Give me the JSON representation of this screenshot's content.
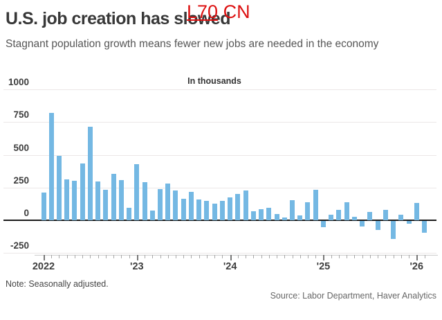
{
  "overlay": {
    "underlined_part": "L70",
    "rest_part": " CN",
    "color": "#dd1111"
  },
  "header": {
    "title": "U.S. job creation has slowed",
    "subtitle": "Stagnant population growth means fewer new jobs are needed in the economy"
  },
  "footer": {
    "note": "Note: Seasonally adjusted.",
    "source": "Source: Labor Department, Haver Analytics"
  },
  "chart_data": {
    "type": "bar",
    "title": "U.S. job creation has slowed",
    "unit_label": "In thousands",
    "ylabel": "In thousands",
    "xlabel": "",
    "ylim": [
      -250,
      1000
    ],
    "grid": true,
    "bar_color": "#74b8e3",
    "yticks": [
      1000,
      750,
      500,
      250,
      0,
      -250
    ],
    "ytick_labels": [
      "1000",
      "750",
      "500",
      "250",
      "0",
      "-250"
    ],
    "x_tick_labels": [
      "2022",
      "'23",
      "'24",
      "'25",
      "'26"
    ],
    "categories": [
      "2022-01",
      "2022-02",
      "2022-03",
      "2022-04",
      "2022-05",
      "2022-06",
      "2022-07",
      "2022-08",
      "2022-09",
      "2022-10",
      "2022-11",
      "2022-12",
      "2023-01",
      "2023-02",
      "2023-03",
      "2023-04",
      "2023-05",
      "2023-06",
      "2023-07",
      "2023-08",
      "2023-09",
      "2023-10",
      "2023-11",
      "2023-12",
      "2024-01",
      "2024-02",
      "2024-03",
      "2024-04",
      "2024-05",
      "2024-06",
      "2024-07",
      "2024-08",
      "2024-09",
      "2024-10",
      "2024-11",
      "2024-12",
      "2025-01",
      "2025-02",
      "2025-03",
      "2025-04",
      "2025-05",
      "2025-06",
      "2025-07",
      "2025-08",
      "2025-09",
      "2025-10",
      "2025-11",
      "2025-12",
      "2026-01",
      "2026-02"
    ],
    "values": [
      210,
      820,
      490,
      310,
      300,
      435,
      715,
      295,
      235,
      355,
      305,
      95,
      430,
      290,
      75,
      240,
      280,
      225,
      165,
      215,
      160,
      150,
      125,
      150,
      175,
      200,
      225,
      70,
      85,
      95,
      50,
      20,
      155,
      35,
      135,
      235,
      -50,
      40,
      80,
      135,
      25,
      -40,
      65,
      -70,
      80,
      -135,
      40,
      -20,
      130,
      -90
    ]
  }
}
